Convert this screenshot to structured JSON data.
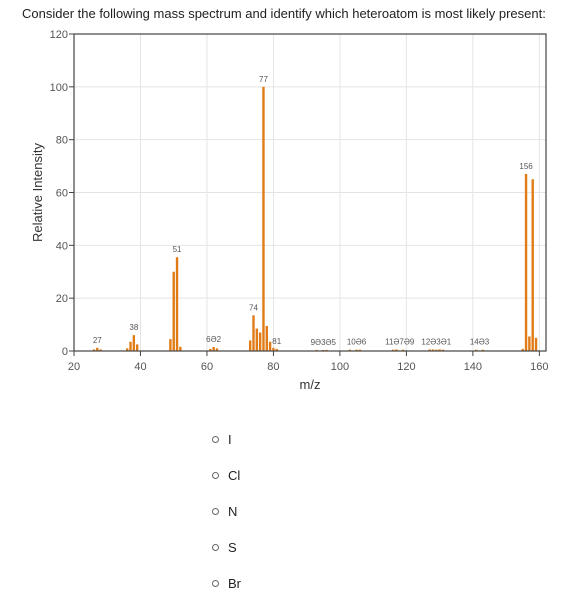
{
  "question": "Consider the following mass spectrum and identify which heteroatom is most likely present:",
  "choices": [
    {
      "label": "I"
    },
    {
      "label": "Cl"
    },
    {
      "label": "N"
    },
    {
      "label": "S"
    },
    {
      "label": "Br"
    }
  ],
  "chart_data": {
    "type": "bar",
    "xlabel": "m/z",
    "ylabel": "Relative Intensity",
    "xlim": [
      20,
      162
    ],
    "ylim": [
      0,
      120
    ],
    "xticks": [
      20,
      40,
      60,
      80,
      100,
      120,
      140,
      160
    ],
    "yticks": [
      0,
      20,
      40,
      60,
      80,
      100,
      120
    ],
    "grid": true,
    "bar_color": "#e07b17",
    "peaks": [
      {
        "x": 26,
        "y": 0.6
      },
      {
        "x": 27,
        "y": 1.2
      },
      {
        "x": 28,
        "y": 0.6
      },
      {
        "x": 36,
        "y": 1.0
      },
      {
        "x": 37,
        "y": 3.5
      },
      {
        "x": 38,
        "y": 6.0
      },
      {
        "x": 39,
        "y": 2.5
      },
      {
        "x": 49,
        "y": 4.5
      },
      {
        "x": 50,
        "y": 30
      },
      {
        "x": 51,
        "y": 35.5
      },
      {
        "x": 52,
        "y": 1.6
      },
      {
        "x": 61,
        "y": 0.8
      },
      {
        "x": 62,
        "y": 1.5
      },
      {
        "x": 63,
        "y": 1.0
      },
      {
        "x": 73,
        "y": 4.0
      },
      {
        "x": 74,
        "y": 13.5
      },
      {
        "x": 75,
        "y": 8.5
      },
      {
        "x": 76,
        "y": 7.0
      },
      {
        "x": 77,
        "y": 100
      },
      {
        "x": 78,
        "y": 9.5
      },
      {
        "x": 79,
        "y": 3.5
      },
      {
        "x": 80,
        "y": 1.2
      },
      {
        "x": 81,
        "y": 0.8
      },
      {
        "x": 93,
        "y": 0.4
      },
      {
        "x": 95,
        "y": 0.4
      },
      {
        "x": 96,
        "y": 0.4
      },
      {
        "x": 103,
        "y": 0.5
      },
      {
        "x": 105,
        "y": 0.5
      },
      {
        "x": 106,
        "y": 0.5
      },
      {
        "x": 116,
        "y": 0.5
      },
      {
        "x": 117,
        "y": 0.6
      },
      {
        "x": 119,
        "y": 0.5
      },
      {
        "x": 127,
        "y": 0.6
      },
      {
        "x": 128,
        "y": 0.6
      },
      {
        "x": 129,
        "y": 0.5
      },
      {
        "x": 130,
        "y": 0.6
      },
      {
        "x": 131,
        "y": 0.5
      },
      {
        "x": 141,
        "y": 0.5
      },
      {
        "x": 143,
        "y": 0.5
      },
      {
        "x": 155,
        "y": 0.8
      },
      {
        "x": 156,
        "y": 67
      },
      {
        "x": 157,
        "y": 5.5
      },
      {
        "x": 158,
        "y": 65
      },
      {
        "x": 159,
        "y": 5.0
      }
    ],
    "peak_labels": [
      {
        "x": 27,
        "y": 1.2,
        "text": "27"
      },
      {
        "x": 38,
        "y": 6.0,
        "text": "38"
      },
      {
        "x": 51,
        "y": 35.5,
        "text": "51"
      },
      {
        "x": 62,
        "y": 1.5,
        "text": "6Ə2"
      },
      {
        "x": 74,
        "y": 13.5,
        "text": "74"
      },
      {
        "x": 77,
        "y": 100,
        "text": "77"
      },
      {
        "x": 81,
        "y": 0.8,
        "text": "81"
      },
      {
        "x": 95,
        "y": 0.4,
        "text": "9Ə3Ə5"
      },
      {
        "x": 105,
        "y": 0.5,
        "text": "10Ə6"
      },
      {
        "x": 118,
        "y": 0.6,
        "text": "11Ə7Ə9"
      },
      {
        "x": 129,
        "y": 0.6,
        "text": "12Ə3Ə1"
      },
      {
        "x": 142,
        "y": 0.5,
        "text": "14Ə3"
      },
      {
        "x": 156,
        "y": 67,
        "text": "156"
      }
    ]
  }
}
